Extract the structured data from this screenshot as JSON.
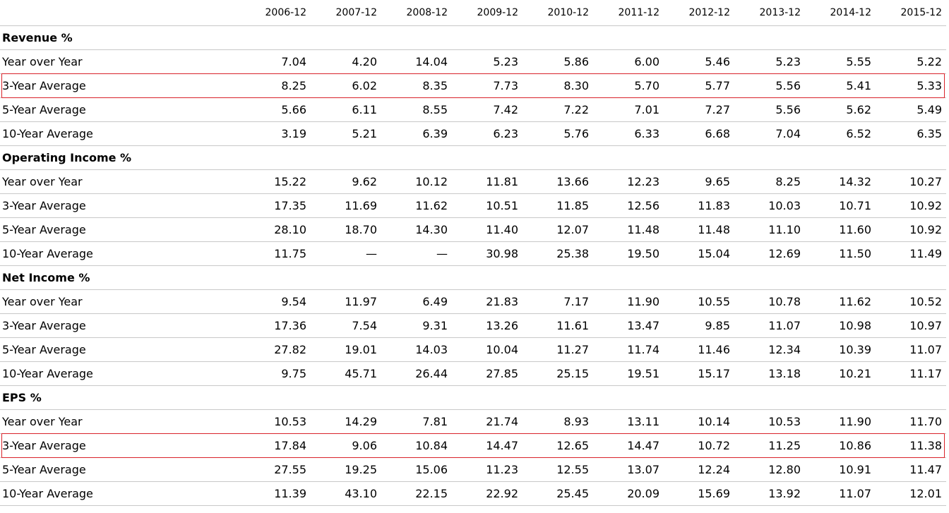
{
  "table": {
    "columns": [
      "2006-12",
      "2007-12",
      "2008-12",
      "2009-12",
      "2010-12",
      "2011-12",
      "2012-12",
      "2013-12",
      "2014-12",
      "2015-12"
    ],
    "sections": [
      {
        "title": "Revenue %",
        "rows": [
          {
            "label": "Year over Year",
            "values": [
              "7.04",
              "4.20",
              "14.04",
              "5.23",
              "5.86",
              "6.00",
              "5.46",
              "5.23",
              "5.55",
              "5.22"
            ]
          },
          {
            "label": "3-Year Average",
            "highlighted": true,
            "values": [
              "8.25",
              "6.02",
              "8.35",
              "7.73",
              "8.30",
              "5.70",
              "5.77",
              "5.56",
              "5.41",
              "5.33"
            ]
          },
          {
            "label": "5-Year Average",
            "values": [
              "5.66",
              "6.11",
              "8.55",
              "7.42",
              "7.22",
              "7.01",
              "7.27",
              "5.56",
              "5.62",
              "5.49"
            ]
          },
          {
            "label": "10-Year Average",
            "values": [
              "3.19",
              "5.21",
              "6.39",
              "6.23",
              "5.76",
              "6.33",
              "6.68",
              "7.04",
              "6.52",
              "6.35"
            ]
          }
        ]
      },
      {
        "title": "Operating Income %",
        "rows": [
          {
            "label": "Year over Year",
            "values": [
              "15.22",
              "9.62",
              "10.12",
              "11.81",
              "13.66",
              "12.23",
              "9.65",
              "8.25",
              "14.32",
              "10.27"
            ]
          },
          {
            "label": "3-Year Average",
            "values": [
              "17.35",
              "11.69",
              "11.62",
              "10.51",
              "11.85",
              "12.56",
              "11.83",
              "10.03",
              "10.71",
              "10.92"
            ]
          },
          {
            "label": "5-Year Average",
            "values": [
              "28.10",
              "18.70",
              "14.30",
              "11.40",
              "12.07",
              "11.48",
              "11.48",
              "11.10",
              "11.60",
              "10.92"
            ]
          },
          {
            "label": "10-Year Average",
            "values": [
              "11.75",
              "—",
              "—",
              "30.98",
              "25.38",
              "19.50",
              "15.04",
              "12.69",
              "11.50",
              "11.49"
            ]
          }
        ]
      },
      {
        "title": "Net Income %",
        "rows": [
          {
            "label": "Year over Year",
            "values": [
              "9.54",
              "11.97",
              "6.49",
              "21.83",
              "7.17",
              "11.90",
              "10.55",
              "10.78",
              "11.62",
              "10.52"
            ]
          },
          {
            "label": "3-Year Average",
            "values": [
              "17.36",
              "7.54",
              "9.31",
              "13.26",
              "11.61",
              "13.47",
              "9.85",
              "11.07",
              "10.98",
              "10.97"
            ]
          },
          {
            "label": "5-Year Average",
            "values": [
              "27.82",
              "19.01",
              "14.03",
              "10.04",
              "11.27",
              "11.74",
              "11.46",
              "12.34",
              "10.39",
              "11.07"
            ]
          },
          {
            "label": "10-Year Average",
            "values": [
              "9.75",
              "45.71",
              "26.44",
              "27.85",
              "25.15",
              "19.51",
              "15.17",
              "13.18",
              "10.21",
              "11.17"
            ]
          }
        ]
      },
      {
        "title": "EPS %",
        "rows": [
          {
            "label": "Year over Year",
            "values": [
              "10.53",
              "14.29",
              "7.81",
              "21.74",
              "8.93",
              "13.11",
              "10.14",
              "10.53",
              "11.90",
              "11.70"
            ]
          },
          {
            "label": "3-Year Average",
            "highlighted": true,
            "values": [
              "17.84",
              "9.06",
              "10.84",
              "14.47",
              "12.65",
              "14.47",
              "10.72",
              "11.25",
              "10.86",
              "11.38"
            ]
          },
          {
            "label": "5-Year Average",
            "values": [
              "27.55",
              "19.25",
              "15.06",
              "11.23",
              "12.55",
              "13.07",
              "12.24",
              "12.80",
              "10.91",
              "11.47"
            ]
          },
          {
            "label": "10-Year Average",
            "values": [
              "11.39",
              "43.10",
              "22.15",
              "22.92",
              "25.45",
              "20.09",
              "15.69",
              "13.92",
              "11.07",
              "12.01"
            ]
          }
        ]
      }
    ]
  }
}
